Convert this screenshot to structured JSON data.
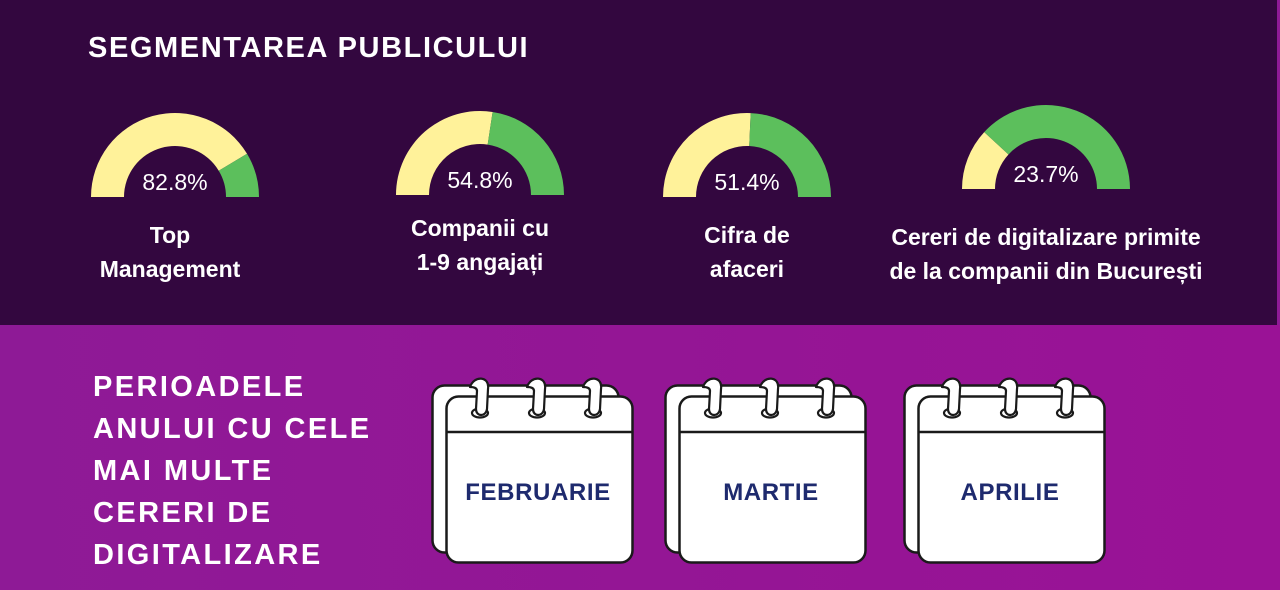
{
  "segmentation": {
    "title": "SEGMENTAREA PUBLICULUI",
    "gauges": [
      {
        "value_label": "82.8%",
        "value": 82.8,
        "label_lines": [
          "Top",
          "Management"
        ]
      },
      {
        "value_label": "54.8%",
        "value": 54.8,
        "label_lines": [
          "Companii cu",
          "1-9 angajați"
        ]
      },
      {
        "value_label": "51.4%",
        "value": 51.4,
        "label_lines": [
          "Cifra de",
          "afaceri"
        ]
      },
      {
        "value_label": "23.7%",
        "value": 23.7,
        "label_lines": [
          "Cereri de digitalizare primite",
          "de la companii din București"
        ]
      }
    ]
  },
  "periods": {
    "title_lines": [
      "PERIOADELE",
      "ANULUI CU CELE",
      "MAI MULTE",
      "CERERI DE",
      "DIGITALIZARE"
    ],
    "months": [
      "FEBRUARIE",
      "MARTIE",
      "APRILIE"
    ]
  },
  "colors": {
    "background_top": "#33073f",
    "background_bottom": "#8e1a96",
    "gauge_filled": "#fff29a",
    "gauge_remaining": "#5cbf5c",
    "month_text": "#1e2a6e"
  },
  "chart_data": {
    "type": "pie",
    "subtype": "semi-circle gauge",
    "title": "SEGMENTAREA PUBLICULUI",
    "categories": [
      "Top Management",
      "Companii cu 1-9 angajați",
      "Cifra de afaceri",
      "Cereri de digitalizare primite de la companii din București"
    ],
    "values": [
      82.8,
      54.8,
      51.4,
      23.7
    ],
    "unit": "%",
    "series": [
      {
        "name": "share (yellow, from left)",
        "values": [
          82.8,
          54.8,
          51.4,
          23.7
        ]
      },
      {
        "name": "remainder (green)",
        "values": [
          17.2,
          45.2,
          48.6,
          76.3
        ]
      }
    ],
    "legend": "none",
    "grid": false
  }
}
